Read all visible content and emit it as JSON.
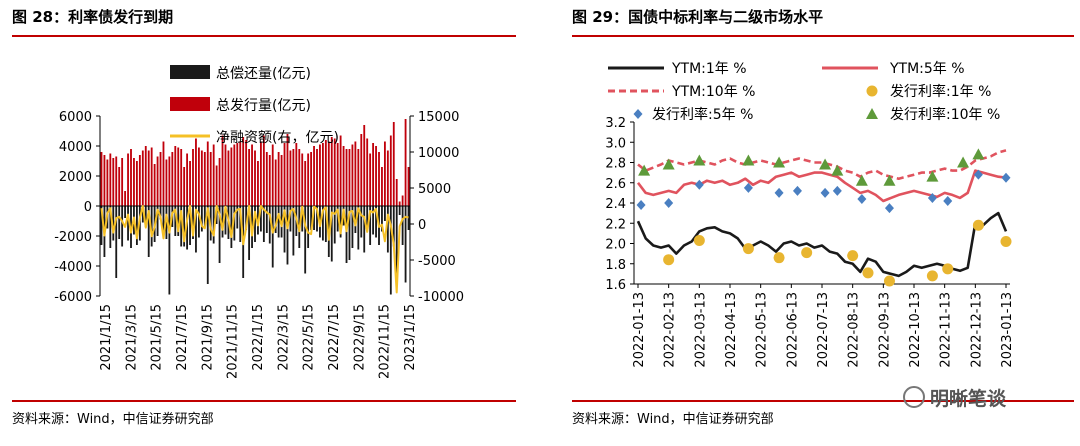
{
  "left": {
    "title": "图 28：利率债发行到期",
    "source": "资料来源：Wind，中信证券研究部"
  },
  "right": {
    "title": "图 29：国债中标利率与二级市场水平",
    "source": "资料来源：Wind，中信证券研究部"
  },
  "watermark": "明晰笔谈",
  "chart_data": [
    {
      "type": "bar",
      "title": "利率债发行到期",
      "x_tick_labels": [
        "2021/1/15",
        "2021/3/15",
        "2021/5/15",
        "2021/7/15",
        "2021/9/15",
        "2021/11/15",
        "2022/1/15",
        "2022/3/15",
        "2022/5/15",
        "2022/7/15",
        "2022/9/15",
        "2022/11/15",
        "2023/1/15"
      ],
      "ylim_left": [
        -6000,
        6000
      ],
      "yticks_left": [
        "6000",
        "4000",
        "2000",
        "0",
        "-2000",
        "-4000",
        "-6000"
      ],
      "ylim_right": [
        -10000,
        15000
      ],
      "yticks_right": [
        "15000",
        "10000",
        "5000",
        "0",
        "-5000",
        "-10000"
      ],
      "legend": [
        "总偿还量(亿元)",
        "总发行量(亿元)",
        "净融资额(右，亿元)"
      ],
      "colors": {
        "issue": "#c0000b",
        "repay": "#1a1a1a",
        "net": "#f5c026"
      },
      "n_periods": 105,
      "series": [
        {
          "name": "总发行量(亿元)",
          "axis": "left",
          "values": [
            3600,
            3400,
            3100,
            3500,
            3200,
            3300,
            2600,
            3200,
            1000,
            3500,
            3800,
            3200,
            3000,
            3400,
            3700,
            4000,
            3700,
            3900,
            2800,
            3300,
            3600,
            4300,
            3100,
            3300,
            3600,
            4000,
            3900,
            3800,
            2600,
            3500,
            3000,
            3800,
            4500,
            3900,
            3700,
            3600,
            4300,
            3600,
            4100,
            2700,
            3200,
            4700,
            4100,
            3700,
            3900,
            4100,
            4200,
            4300,
            4600,
            4400,
            3800,
            4100,
            3700,
            3000,
            4300,
            4700,
            3600,
            3400,
            4100,
            3100,
            3600,
            3400,
            4200,
            4800,
            3700,
            3800,
            4200,
            3800,
            3500,
            3000,
            3500,
            3600,
            4000,
            3800,
            4100,
            4200,
            4400,
            4300,
            4600,
            4500,
            4200,
            4700,
            4000,
            3800,
            3800,
            4100,
            4300,
            3800,
            4800,
            5400,
            4500,
            3500,
            4200,
            4000,
            3600,
            2600,
            4300,
            3700,
            4700,
            5600,
            1800,
            300,
            700,
            5800,
            2600
          ]
        },
        {
          "name": "总偿还量(亿元)",
          "axis": "left",
          "values": [
            -2600,
            -3400,
            -1500,
            -2800,
            -2300,
            -4800,
            -2200,
            -2700,
            -800,
            -2300,
            -2800,
            -1900,
            -2600,
            -2300,
            -1100,
            -1400,
            -3400,
            -2700,
            -2400,
            -2000,
            -900,
            -2000,
            -2200,
            -5900,
            -1400,
            -2000,
            -2000,
            -2700,
            -2700,
            -2900,
            -2600,
            -2200,
            -3100,
            -2100,
            -1700,
            -1400,
            -5200,
            -2300,
            -2500,
            -1200,
            -3800,
            -2100,
            -1900,
            -2200,
            -2800,
            -2300,
            -1500,
            -2400,
            -4800,
            -1600,
            -3600,
            -2800,
            -2400,
            -1900,
            -1700,
            -2400,
            -1800,
            -2500,
            -4100,
            -1800,
            -2100,
            -2100,
            -3100,
            -3900,
            -1700,
            -3300,
            -2000,
            -2800,
            -1700,
            -4500,
            -2800,
            -1600,
            -1600,
            -1700,
            -2100,
            -2300,
            -2400,
            -3400,
            -3700,
            -2500,
            -1700,
            -2100,
            -1300,
            -3800,
            -3600,
            -2800,
            -1800,
            -2900,
            -2100,
            -3100,
            -1500,
            -2600,
            -1900,
            -2100,
            -2600,
            -1700,
            -1000,
            -3100,
            -5900,
            -2700,
            -4800,
            -600,
            -2600,
            -5100,
            -1600
          ]
        },
        {
          "name": "净融资额(右，亿元)",
          "axis": "right",
          "values": [
            2200,
            -1600,
            1500,
            2200,
            -1200,
            800,
            1000,
            400,
            -400,
            1300,
            -1200,
            900,
            -2000,
            900,
            2500,
            -500,
            1800,
            -1700,
            -400,
            2000,
            1000,
            -2000,
            1300,
            -1200,
            1500,
            2000,
            -1000,
            1800,
            -2400,
            500,
            2500,
            -1600,
            2000,
            1400,
            -300,
            -600,
            2200,
            -700,
            -1600,
            2500,
            1300,
            -800,
            2400,
            600,
            -1800,
            1400,
            2000,
            2100,
            -2800,
            -600,
            2500,
            -1600,
            1700,
            -200,
            2500,
            2000,
            1600,
            1300,
            -1200,
            -200,
            1400,
            -300,
            1900,
            -600,
            1800,
            2100,
            800,
            -1000,
            2400,
            -200,
            -1200,
            -1400,
            2400,
            2100,
            -300,
            1900,
            2300,
            -2200,
            1600,
            1400,
            2000,
            -1300,
            2000,
            -1000,
            1700,
            1800,
            -200,
            2200,
            1200,
            1000,
            -1100,
            1800,
            1600,
            2100,
            -400,
            -100,
            -2400,
            1300,
            -200,
            -2900,
            -9500,
            -300,
            700,
            1000,
            900
          ]
        }
      ]
    },
    {
      "type": "line",
      "title": "国债中标利率与二级市场水平",
      "x_tick_labels": [
        "2022-01-13",
        "2022-02-13",
        "2022-03-13",
        "2022-04-13",
        "2022-05-13",
        "2022-06-13",
        "2022-07-13",
        "2022-08-13",
        "2022-09-13",
        "2022-10-13",
        "2022-11-13",
        "2022-12-13",
        "2023-01-13"
      ],
      "ylim": [
        1.6,
        3.2
      ],
      "yticks": [
        "3.2",
        "3.0",
        "2.8",
        "2.6",
        "2.4",
        "2.2",
        "2.0",
        "1.8",
        "1.6"
      ],
      "legend": [
        "YTM:1年 %",
        "YTM:5年 %",
        "YTM:10年 %",
        "发行利率:1年 %",
        "发行利率:5年 %",
        "发行利率:10年 %"
      ],
      "colors": {
        "ytm1": "#1a1a1a",
        "ytm5": "#e0535e",
        "ytm10": "#e0535e",
        "issue1": "#e8b530",
        "issue5": "#4a7fc1",
        "issue10": "#5e9a3a"
      },
      "x_months": [
        0,
        0.25,
        0.5,
        0.75,
        1,
        1.25,
        1.5,
        1.75,
        2,
        2.25,
        2.5,
        2.75,
        3,
        3.25,
        3.5,
        3.75,
        4,
        4.25,
        4.5,
        4.75,
        5,
        5.25,
        5.5,
        5.75,
        6,
        6.25,
        6.5,
        6.75,
        7,
        7.25,
        7.5,
        7.75,
        8,
        8.25,
        8.5,
        8.75,
        9,
        9.25,
        9.5,
        9.75,
        10,
        10.25,
        10.5,
        10.75,
        11,
        11.25,
        11.5,
        11.75,
        12
      ],
      "series": [
        {
          "name": "YTM:1年 %",
          "x_months": [
            0,
            0.25,
            0.5,
            0.75,
            1,
            1.25,
            1.5,
            1.75,
            2,
            2.25,
            2.5,
            2.75,
            3,
            3.25,
            3.5,
            3.75,
            4,
            4.25,
            4.5,
            4.75,
            5,
            5.25,
            5.5,
            5.75,
            6,
            6.25,
            6.5,
            6.75,
            7,
            7.25,
            7.5,
            7.75,
            8,
            8.25,
            8.5,
            8.75,
            9,
            9.25,
            9.5,
            9.75,
            10,
            10.25,
            10.5,
            10.75,
            11,
            11.25,
            11.5,
            11.75,
            12
          ],
          "values": [
            2.22,
            2.05,
            1.98,
            1.96,
            1.98,
            1.9,
            1.98,
            2.02,
            2.12,
            2.15,
            2.16,
            2.12,
            2.1,
            2.05,
            1.95,
            1.98,
            2.02,
            1.98,
            1.92,
            2.0,
            2.02,
            1.98,
            2.0,
            1.96,
            1.98,
            1.92,
            1.9,
            1.82,
            1.8,
            1.72,
            1.85,
            1.82,
            1.72,
            1.7,
            1.68,
            1.72,
            1.78,
            1.76,
            1.78,
            1.8,
            1.78,
            1.75,
            1.73,
            1.76,
            2.2,
            2.18,
            2.25,
            2.3,
            2.12
          ]
        },
        {
          "name": "YTM:5年 %",
          "x_months": [
            0,
            0.25,
            0.5,
            0.75,
            1,
            1.25,
            1.5,
            1.75,
            2,
            2.25,
            2.5,
            2.75,
            3,
            3.25,
            3.5,
            3.75,
            4,
            4.25,
            4.5,
            4.75,
            5,
            5.25,
            5.5,
            5.75,
            6,
            6.25,
            6.5,
            6.75,
            7,
            7.25,
            7.5,
            7.75,
            8,
            8.25,
            8.5,
            8.75,
            9,
            9.25,
            9.5,
            9.75,
            10,
            10.25,
            10.5,
            10.75,
            11,
            11.25,
            11.5,
            11.75,
            12
          ],
          "values": [
            2.6,
            2.5,
            2.48,
            2.5,
            2.52,
            2.5,
            2.58,
            2.6,
            2.58,
            2.62,
            2.6,
            2.62,
            2.58,
            2.6,
            2.64,
            2.58,
            2.62,
            2.6,
            2.66,
            2.68,
            2.7,
            2.66,
            2.68,
            2.7,
            2.7,
            2.68,
            2.66,
            2.6,
            2.55,
            2.5,
            2.52,
            2.48,
            2.42,
            2.45,
            2.48,
            2.5,
            2.52,
            2.5,
            2.48,
            2.46,
            2.5,
            2.48,
            2.45,
            2.5,
            2.72,
            2.7,
            2.68,
            2.66,
            2.65
          ]
        },
        {
          "name": "YTM:10年 %",
          "x_months": [
            0,
            0.25,
            0.5,
            0.75,
            1,
            1.25,
            1.5,
            1.75,
            2,
            2.25,
            2.5,
            2.75,
            3,
            3.25,
            3.5,
            3.75,
            4,
            4.25,
            4.5,
            4.75,
            5,
            5.25,
            5.5,
            5.75,
            6,
            6.25,
            6.5,
            6.75,
            7,
            7.25,
            7.5,
            7.75,
            8,
            8.25,
            8.5,
            8.75,
            9,
            9.25,
            9.5,
            9.75,
            10,
            10.25,
            10.5,
            10.75,
            11,
            11.25,
            11.5,
            11.75,
            12
          ],
          "values": [
            2.78,
            2.72,
            2.75,
            2.78,
            2.82,
            2.8,
            2.78,
            2.8,
            2.82,
            2.8,
            2.78,
            2.82,
            2.84,
            2.8,
            2.78,
            2.8,
            2.82,
            2.8,
            2.78,
            2.8,
            2.82,
            2.84,
            2.82,
            2.8,
            2.8,
            2.78,
            2.76,
            2.72,
            2.7,
            2.66,
            2.7,
            2.72,
            2.68,
            2.66,
            2.64,
            2.66,
            2.68,
            2.7,
            2.7,
            2.72,
            2.74,
            2.72,
            2.72,
            2.76,
            2.82,
            2.84,
            2.86,
            2.9,
            2.92
          ]
        },
        {
          "name": "发行利率:1年 %",
          "points": [
            [
              1,
              1.84
            ],
            [
              2,
              2.03
            ],
            [
              3.6,
              1.95
            ],
            [
              4.6,
              1.86
            ],
            [
              5.5,
              1.91
            ],
            [
              7,
              1.88
            ],
            [
              7.5,
              1.71
            ],
            [
              8.2,
              1.63
            ],
            [
              9.6,
              1.68
            ],
            [
              10.1,
              1.75
            ],
            [
              11.1,
              2.18
            ],
            [
              12,
              2.02
            ]
          ]
        },
        {
          "name": "发行利率:5年 %",
          "points": [
            [
              0.1,
              2.38
            ],
            [
              1,
              2.4
            ],
            [
              2,
              2.58
            ],
            [
              3.6,
              2.55
            ],
            [
              4.6,
              2.5
            ],
            [
              5.2,
              2.52
            ],
            [
              6.1,
              2.5
            ],
            [
              6.5,
              2.52
            ],
            [
              7.3,
              2.44
            ],
            [
              8.2,
              2.35
            ],
            [
              9.6,
              2.45
            ],
            [
              10.1,
              2.42
            ],
            [
              11.1,
              2.68
            ],
            [
              12,
              2.65
            ]
          ]
        },
        {
          "name": "发行利率:10年 %",
          "points": [
            [
              0.2,
              2.72
            ],
            [
              1,
              2.78
            ],
            [
              2,
              2.82
            ],
            [
              3.6,
              2.82
            ],
            [
              4.6,
              2.8
            ],
            [
              6.1,
              2.78
            ],
            [
              6.5,
              2.72
            ],
            [
              7.3,
              2.62
            ],
            [
              8.2,
              2.62
            ],
            [
              9.6,
              2.66
            ],
            [
              10.6,
              2.8
            ],
            [
              11.1,
              2.88
            ]
          ]
        }
      ]
    }
  ]
}
